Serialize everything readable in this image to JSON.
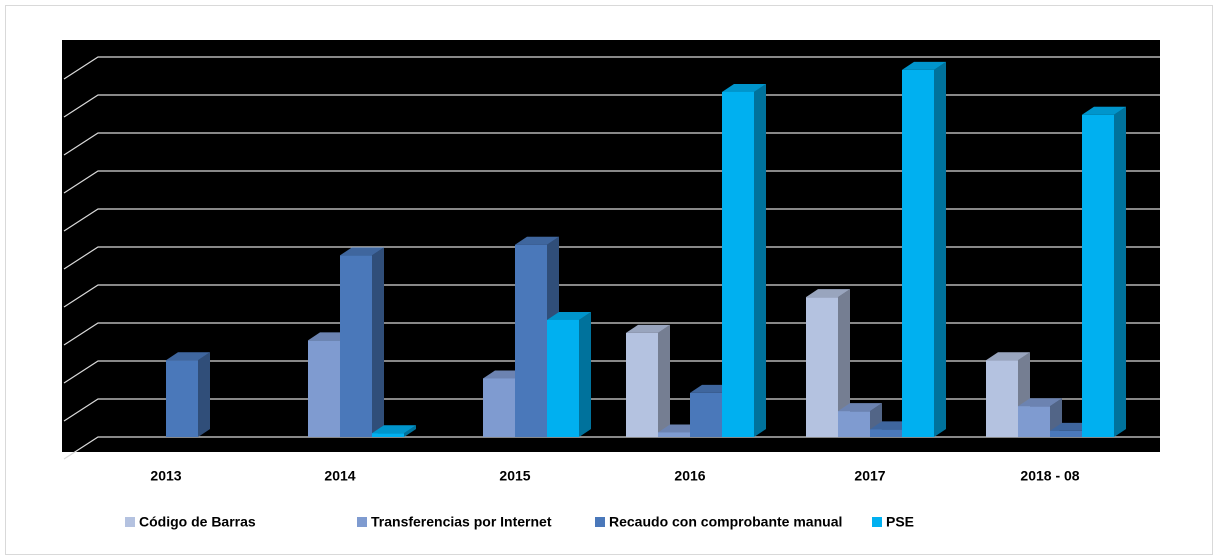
{
  "chart_data": {
    "type": "bar3d",
    "categories": [
      "2013",
      "2014",
      "2015",
      "2016",
      "2017",
      "2018 - 08"
    ],
    "series": [
      {
        "name": "Código de Barras",
        "color": "#b4c2e0",
        "values": [
          null,
          null,
          null,
          13700,
          18400,
          10100
        ]
      },
      {
        "name": "Transferencias por Internet",
        "color": "#7f9bd0",
        "values": [
          null,
          12708,
          7704,
          600,
          3400,
          4050
        ]
      },
      {
        "name": "Recaudo con comprobante manual",
        "color": "#4a78ba",
        "values": [
          10100,
          23900,
          25300,
          5800,
          1000,
          800
        ]
      },
      {
        "name": "PSE",
        "color": "#00b0f0",
        "values": [
          null,
          500,
          15400,
          45400,
          48300,
          42400
        ]
      }
    ],
    "ylim": [
      0,
      50000
    ],
    "yticks": [
      0,
      5000,
      10000,
      15000,
      20000,
      25000,
      30000,
      35000,
      40000,
      45000,
      50000
    ],
    "grid": true,
    "legend": "bottom"
  }
}
